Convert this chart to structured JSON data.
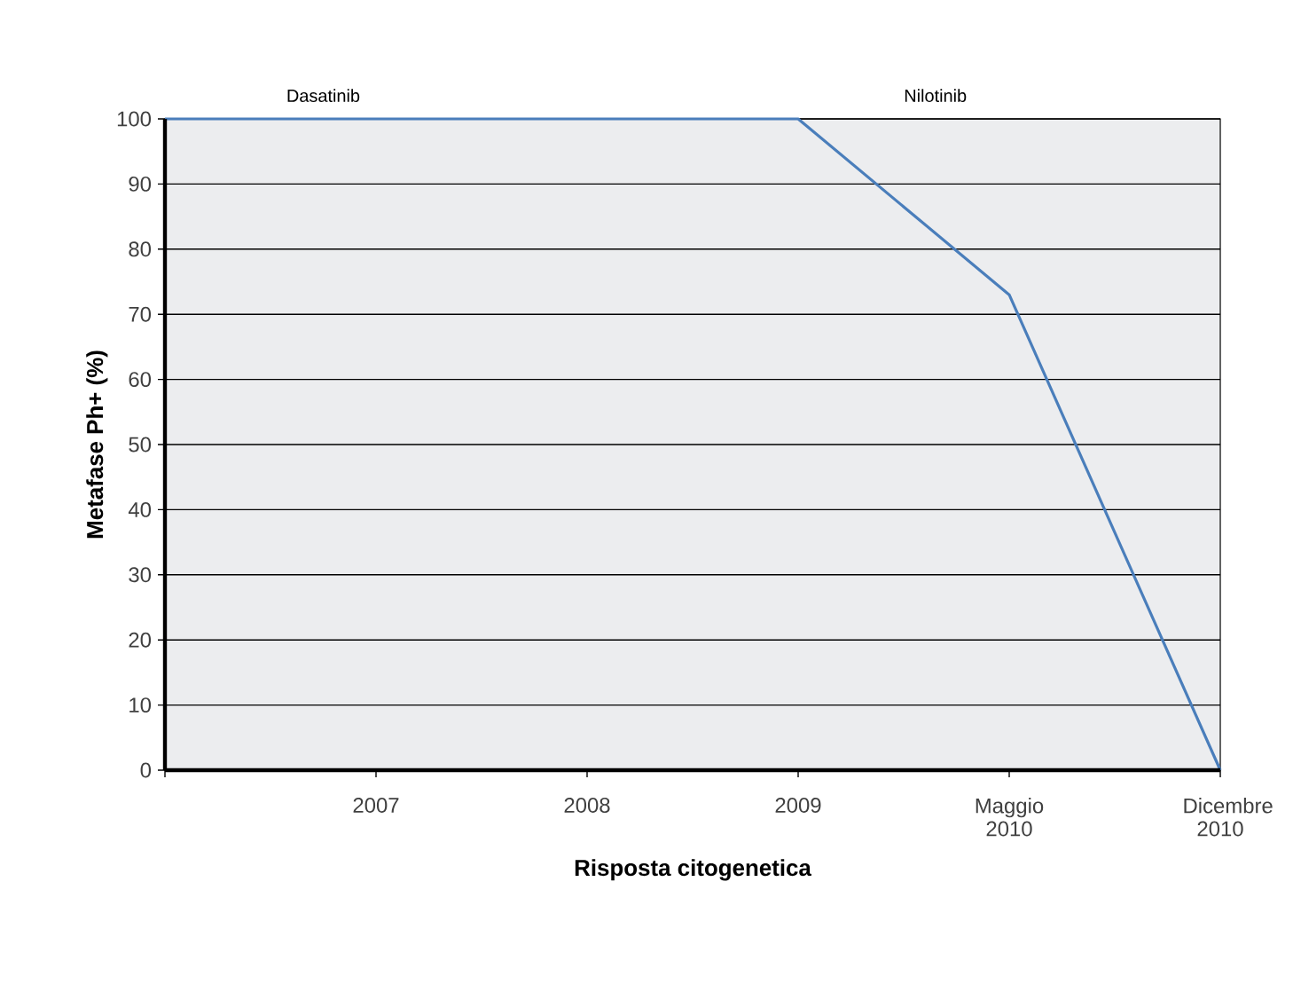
{
  "chart_data": {
    "type": "line",
    "xlabel": "Risposta citogenetica",
    "ylabel": "Metafase Ph+ (%)",
    "categories": [
      null,
      "2007",
      "2008",
      "2009",
      "Maggio 2010",
      "Dicembre 2010"
    ],
    "series": [
      {
        "color": "#4a7ebb",
        "values": [
          100,
          100,
          100,
          100,
          73,
          0
        ]
      }
    ],
    "ylim": [
      0,
      100
    ],
    "yticks": [
      0,
      10,
      20,
      30,
      40,
      50,
      60,
      70,
      80,
      90,
      100
    ],
    "grid": "y",
    "marker": "none",
    "line_style": "solid",
    "annotations": [
      "Dasatinib",
      "Nilotinib"
    ]
  }
}
